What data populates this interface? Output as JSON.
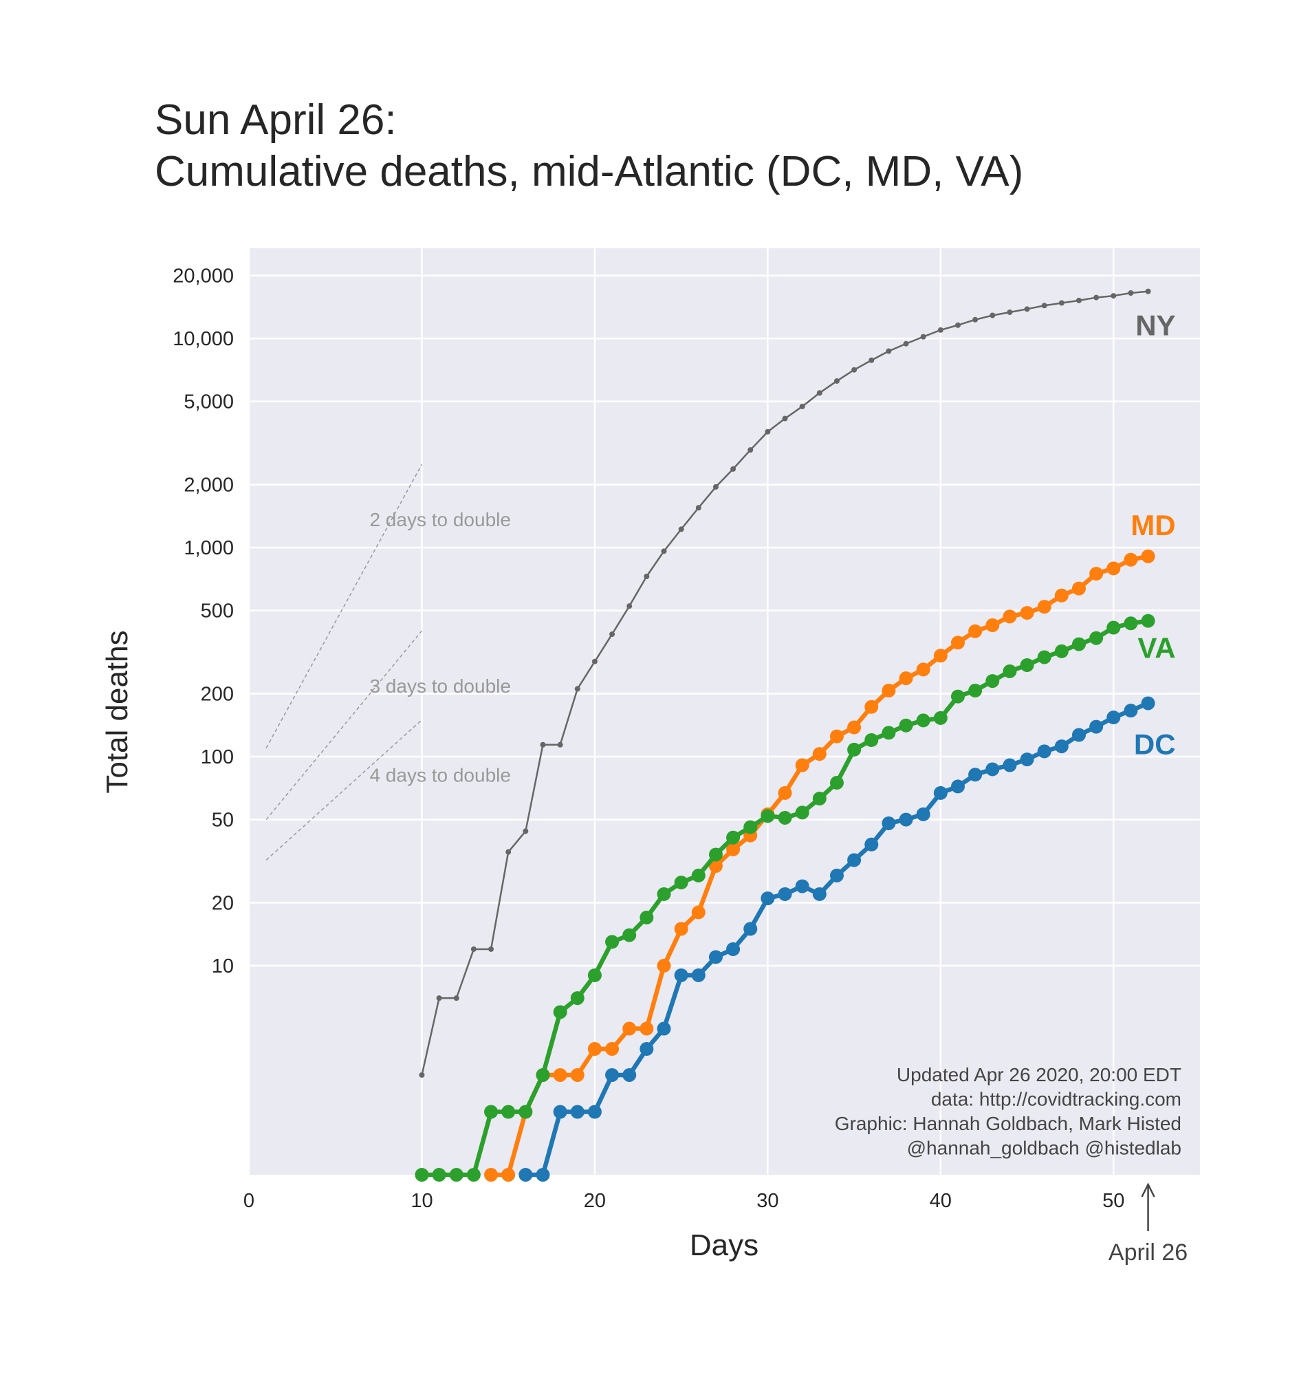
{
  "chart_data": {
    "type": "line",
    "title": "Sun April 26:",
    "subtitle": "Cumulative deaths, mid-Atlantic (DC, MD, VA)",
    "x_label": "Days",
    "y_label": "Total deaths",
    "log_scale": true,
    "grid": true,
    "xlim": [
      0,
      55
    ],
    "xticks": [
      0,
      10,
      20,
      30,
      40,
      50
    ],
    "ylim": [
      1,
      27000
    ],
    "yticks": [
      10,
      20,
      50,
      100,
      200,
      500,
      {
        "value": 1000,
        "label": "1,000"
      },
      {
        "value": 2000,
        "label": "2,000"
      },
      {
        "value": 5000,
        "label": "5,000"
      },
      {
        "value": 10000,
        "label": "10,000"
      },
      {
        "value": 20000,
        "label": "20,000"
      }
    ],
    "x": [
      10,
      11,
      12,
      13,
      14,
      15,
      16,
      17,
      18,
      19,
      20,
      21,
      22,
      23,
      24,
      25,
      26,
      27,
      28,
      29,
      30,
      31,
      32,
      33,
      34,
      35,
      36,
      37,
      38,
      39,
      40,
      41,
      42,
      43,
      44,
      45,
      46,
      47,
      48,
      49,
      50,
      51,
      52
    ],
    "series": [
      {
        "name": "NY",
        "color": "#666666",
        "values": [
          3,
          7,
          7,
          12,
          12,
          35,
          44,
          114,
          114,
          211,
          285,
          385,
          525,
          728,
          961,
          1224,
          1550,
          1950,
          2375,
          2930,
          3580,
          4140,
          4730,
          5490,
          6260,
          7080,
          7870,
          8700,
          9440,
          10190,
          10980,
          11580,
          12300,
          12900,
          13350,
          13830,
          14370,
          14790,
          15200,
          15700,
          16000,
          16500,
          16800
        ]
      },
      {
        "name": "MD",
        "color": "#ff7f0e",
        "values": [
          null,
          null,
          null,
          null,
          1,
          1,
          2,
          3,
          3,
          3,
          4,
          4,
          5,
          5,
          10,
          15,
          18,
          30,
          36,
          42,
          53,
          67,
          91,
          103,
          125,
          138,
          173,
          207,
          237,
          261,
          304,
          351,
          398,
          425,
          468,
          487,
          521,
          590,
          637,
          750,
          795,
          875,
          908
        ]
      },
      {
        "name": "VA",
        "color": "#2ca02c",
        "values": [
          1,
          1,
          1,
          1,
          2,
          2,
          2,
          3,
          6,
          7,
          9,
          13,
          14,
          17,
          22,
          25,
          27,
          34,
          41,
          46,
          52,
          51,
          54,
          63,
          75,
          108,
          120,
          130,
          141,
          149,
          153,
          194,
          207,
          230,
          256,
          274,
          299,
          319,
          345,
          369,
          414,
          434,
          446
        ]
      },
      {
        "name": "DC",
        "color": "#1f77b4",
        "values": [
          null,
          null,
          null,
          null,
          null,
          null,
          1,
          1,
          2,
          2,
          2,
          3,
          3,
          4,
          5,
          9,
          9,
          11,
          12,
          15,
          21,
          22,
          24,
          22,
          27,
          32,
          38,
          48,
          50,
          53,
          67,
          72,
          82,
          87,
          91,
          97,
          106,
          112,
          127,
          139,
          154,
          166,
          180
        ]
      }
    ],
    "reference_lines": [
      {
        "label": "2 days to double",
        "x": [
          1,
          10
        ],
        "values": [
          110,
          2500
        ]
      },
      {
        "label": "3 days to double",
        "x": [
          1,
          10
        ],
        "values": [
          50,
          400
        ]
      },
      {
        "label": "4 days to double",
        "x": [
          1,
          10
        ],
        "values": [
          32,
          150
        ]
      }
    ],
    "notes": [
      "Updated Apr 26 2020, 20:00 EDT",
      "data: http://covidtracking.com",
      "Graphic: Hannah Goldbach, Mark Histed",
      "@hannah_goldbach @histedlab"
    ],
    "arrow": {
      "x": 52,
      "label": "April 26"
    }
  }
}
